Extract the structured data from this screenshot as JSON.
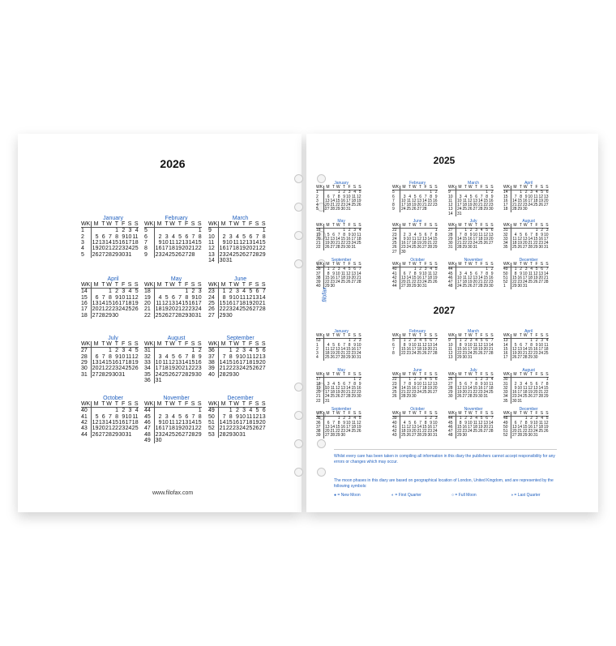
{
  "weekday_headers": [
    "WK",
    "M",
    "T",
    "W",
    "T",
    "F",
    "S",
    "S"
  ],
  "month_names": [
    "January",
    "February",
    "March",
    "April",
    "May",
    "June",
    "July",
    "August",
    "September",
    "October",
    "November",
    "December"
  ],
  "left_page": {
    "year": "2026",
    "website": "www.filofax.com"
  },
  "right_page": {
    "years": [
      "2025",
      "2027"
    ],
    "logo": "filofax",
    "disclaimer": "Whilst every care has been taken in compiling all information in this diary the publishers cannot accept responsibility for any errors or changes which may occur.",
    "moon_note": "The moon phases in this diary are based on geographical location of London, United Kingdom, and are represented by the following symbols:",
    "moon_symbols": [
      {
        "symbol": "●",
        "label": "= New Moon"
      },
      {
        "symbol": "◐",
        "label": "= First Quarter"
      },
      {
        "symbol": "○",
        "label": "= Full Moon"
      },
      {
        "symbol": "◑",
        "label": "= Last Quarter"
      }
    ]
  },
  "colors": {
    "accent": "#1f5fbf",
    "text": "#111111"
  }
}
